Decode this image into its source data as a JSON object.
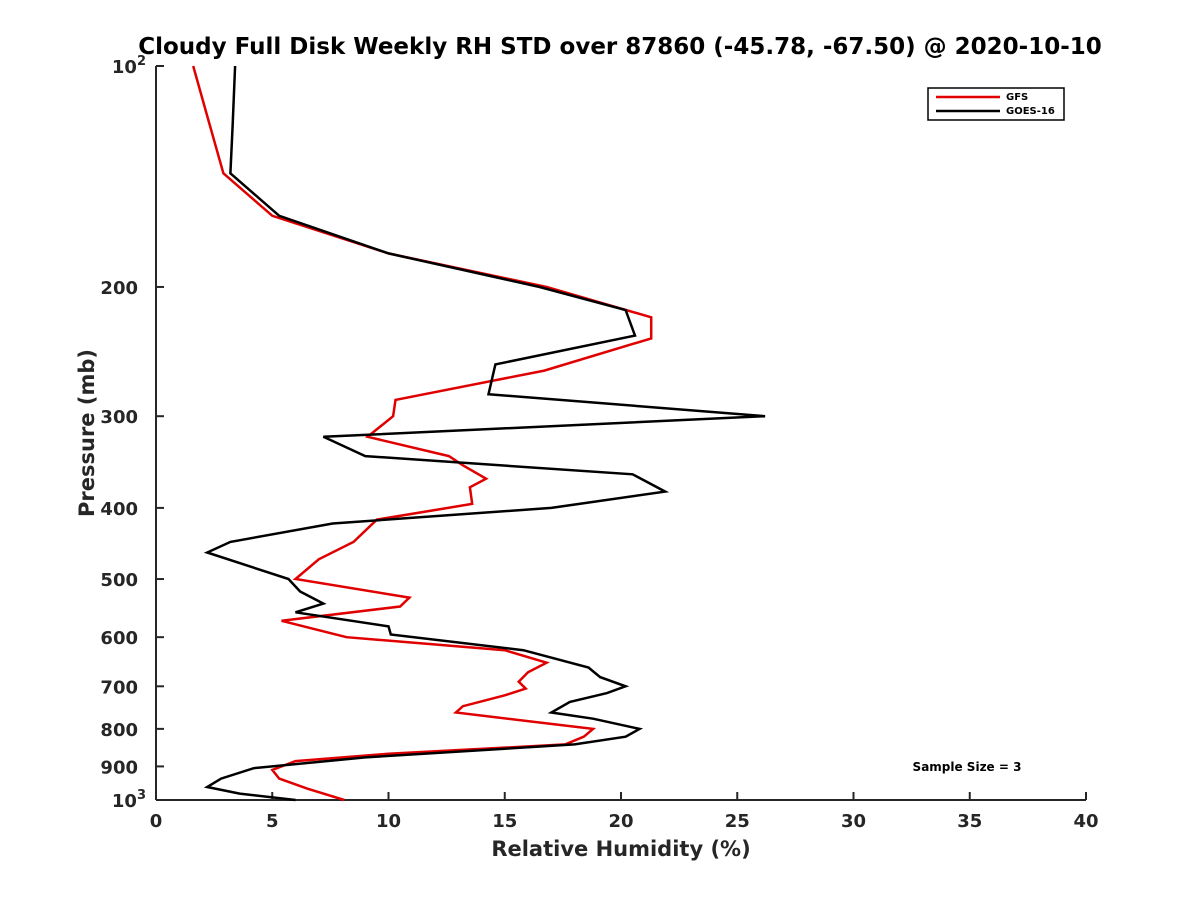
{
  "chart_data": {
    "type": "line",
    "title": "Cloudy Full Disk Weekly RH STD over 87860 (-45.78, -67.50) @ 2020-10-10",
    "xlabel": "Relative Humidity (%)",
    "ylabel": "Pressure (mb)",
    "xlim": [
      0,
      40
    ],
    "ylim": [
      100,
      1000
    ],
    "y_scale": "log",
    "y_reversed": true,
    "x_ticks": [
      "0",
      "5",
      "10",
      "15",
      "20",
      "25",
      "30",
      "35",
      "40"
    ],
    "y_ticks": [
      {
        "value": 100,
        "label": "10",
        "exp": "2"
      },
      {
        "value": 200,
        "label": "200",
        "exp": ""
      },
      {
        "value": 300,
        "label": "300",
        "exp": ""
      },
      {
        "value": 400,
        "label": "400",
        "exp": ""
      },
      {
        "value": 500,
        "label": "500",
        "exp": ""
      },
      {
        "value": 600,
        "label": "600",
        "exp": ""
      },
      {
        "value": 700,
        "label": "700",
        "exp": ""
      },
      {
        "value": 800,
        "label": "800",
        "exp": ""
      },
      {
        "value": 900,
        "label": "900",
        "exp": ""
      },
      {
        "value": 1000,
        "label": "10",
        "exp": "3"
      }
    ],
    "grid": false,
    "legend_position": "top-right",
    "annotation": "Sample Size = 3",
    "series": [
      {
        "name": "GFS",
        "color": "#e00000",
        "points": [
          [
            1.6,
            100
          ],
          [
            2.3,
            120
          ],
          [
            2.9,
            140
          ],
          [
            5.0,
            160
          ],
          [
            10.0,
            180
          ],
          [
            16.8,
            200
          ],
          [
            21.3,
            220
          ],
          [
            21.3,
            235
          ],
          [
            16.7,
            260
          ],
          [
            10.3,
            285
          ],
          [
            10.2,
            300
          ],
          [
            9.1,
            320
          ],
          [
            12.6,
            340
          ],
          [
            13.2,
            350
          ],
          [
            14.2,
            365
          ],
          [
            13.5,
            375
          ],
          [
            13.6,
            395
          ],
          [
            9.5,
            415
          ],
          [
            8.5,
            445
          ],
          [
            7.0,
            470
          ],
          [
            6.0,
            500
          ],
          [
            10.9,
            530
          ],
          [
            10.5,
            545
          ],
          [
            5.4,
            570
          ],
          [
            8.2,
            600
          ],
          [
            15.0,
            625
          ],
          [
            16.8,
            650
          ],
          [
            16.0,
            670
          ],
          [
            15.6,
            690
          ],
          [
            15.9,
            705
          ],
          [
            15.0,
            720
          ],
          [
            13.2,
            745
          ],
          [
            12.9,
            760
          ],
          [
            18.8,
            800
          ],
          [
            18.4,
            820
          ],
          [
            17.6,
            840
          ],
          [
            10.0,
            865
          ],
          [
            6.0,
            885
          ],
          [
            5.0,
            910
          ],
          [
            5.3,
            935
          ],
          [
            6.5,
            965
          ],
          [
            8.1,
            1000
          ]
        ]
      },
      {
        "name": "GOES-16",
        "color": "#000000",
        "points": [
          [
            3.4,
            100
          ],
          [
            3.3,
            120
          ],
          [
            3.2,
            140
          ],
          [
            5.3,
            160
          ],
          [
            10.0,
            180
          ],
          [
            16.5,
            200
          ],
          [
            20.2,
            215
          ],
          [
            20.6,
            233
          ],
          [
            14.6,
            255
          ],
          [
            14.3,
            280
          ],
          [
            26.2,
            300
          ],
          [
            7.2,
            320
          ],
          [
            9.0,
            340
          ],
          [
            20.5,
            360
          ],
          [
            21.9,
            380
          ],
          [
            17.0,
            400
          ],
          [
            7.6,
            420
          ],
          [
            3.2,
            445
          ],
          [
            2.2,
            460
          ],
          [
            5.7,
            500
          ],
          [
            6.2,
            520
          ],
          [
            7.2,
            540
          ],
          [
            6.0,
            555
          ],
          [
            10.0,
            580
          ],
          [
            10.1,
            595
          ],
          [
            15.8,
            625
          ],
          [
            18.6,
            660
          ],
          [
            19.1,
            680
          ],
          [
            20.2,
            700
          ],
          [
            19.4,
            715
          ],
          [
            17.8,
            735
          ],
          [
            17.0,
            760
          ],
          [
            18.8,
            775
          ],
          [
            20.8,
            800
          ],
          [
            20.2,
            820
          ],
          [
            18.0,
            840
          ],
          [
            9.0,
            875
          ],
          [
            4.2,
            905
          ],
          [
            2.8,
            935
          ],
          [
            2.2,
            960
          ],
          [
            3.6,
            980
          ],
          [
            6.0,
            1000
          ]
        ]
      }
    ]
  }
}
